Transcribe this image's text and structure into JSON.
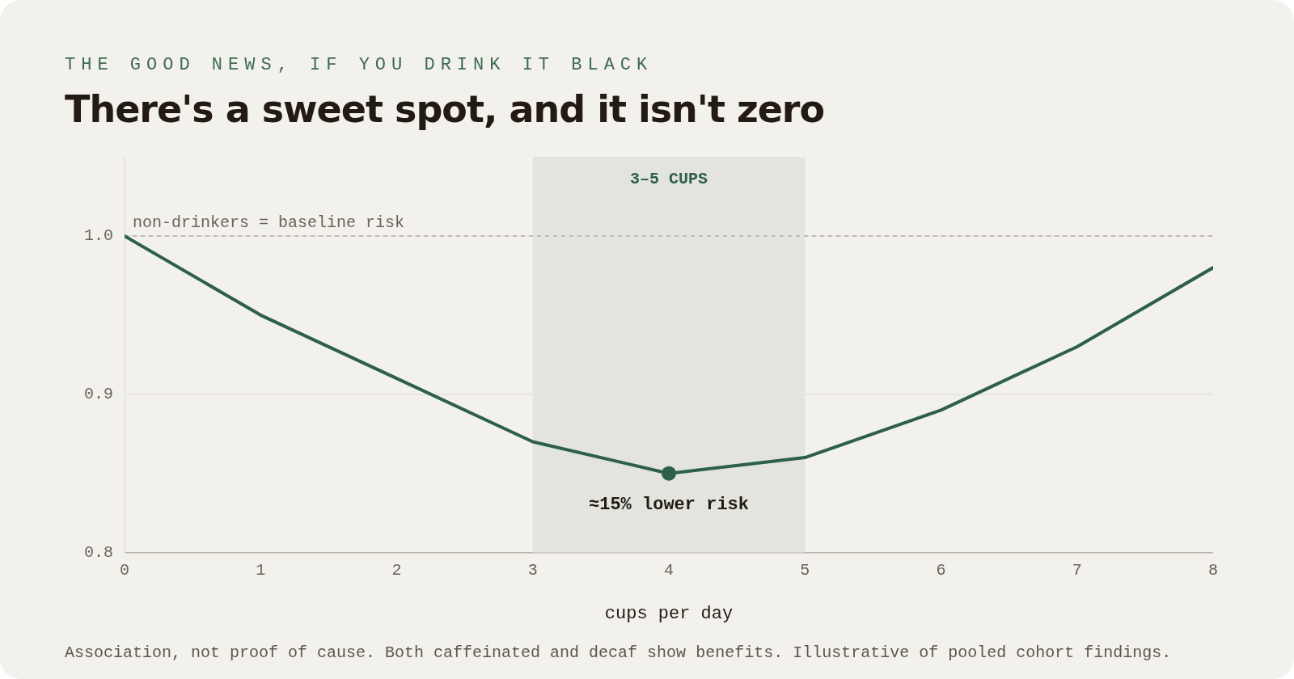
{
  "chart_data": {
    "type": "line",
    "subtitle": "THE GOOD NEWS, IF YOU DRINK IT BLACK",
    "title": "There's a sweet spot, and it isn't zero",
    "xlabel": "cups per day",
    "x": [
      0,
      1,
      2,
      3,
      4,
      5,
      6,
      7,
      8
    ],
    "series": [
      {
        "color": "#2e6049",
        "values": [
          1.0,
          0.95,
          0.91,
          0.87,
          0.85,
          0.86,
          0.89,
          0.93,
          0.98
        ],
        "marker": "none",
        "line_style": "solid"
      },
      {
        "type": "scatter",
        "x": [
          4
        ],
        "color": "#2e6049",
        "values": [
          0.85
        ],
        "marker": "circle"
      }
    ],
    "xlim": [
      0,
      8
    ],
    "xticks": [
      0,
      1,
      2,
      3,
      4,
      5,
      6,
      7,
      8
    ],
    "ylim": [
      0.8,
      1.05
    ],
    "yticks": [
      0.8,
      0.9,
      {
        "value": 1.0,
        "label": "1.0"
      }
    ],
    "grid": "y",
    "ref_lines": [
      {
        "axis": "y",
        "value": 1.0,
        "label": "non-drinkers = baseline risk",
        "color": "#a8a39b",
        "line_style": "dashed"
      }
    ],
    "bands": [
      {
        "axis": "x",
        "from": 3,
        "to": 5,
        "label": "3–5 CUPS",
        "color": "#e2e4dd"
      }
    ],
    "annotations": [
      {
        "text": "≈15% lower risk",
        "x": 4,
        "y": 0.85
      },
      "Association, not proof of cause. Both caffeinated and decaf show benefits. Illustrative of pooled cohort findings."
    ]
  }
}
